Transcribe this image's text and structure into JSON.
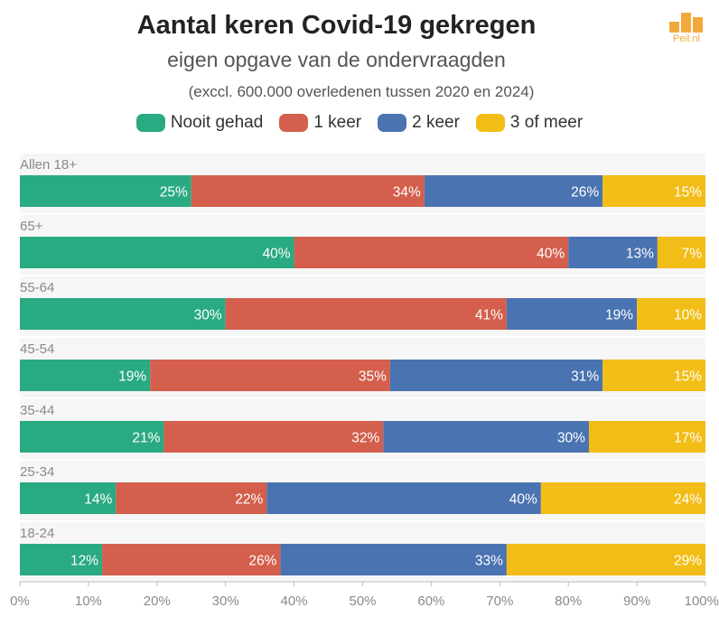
{
  "title": "Aantal keren Covid-19 gekregen",
  "subtitle": "eigen opgave van de ondervraagden",
  "note": "(exccl. 600.000 overledenen tussen 2020 en 2024)",
  "logo": {
    "text": "Peil.nl",
    "color": "#f2a93b"
  },
  "chart_data": {
    "type": "bar",
    "orientation": "horizontal",
    "stacked": true,
    "title": "Aantal keren Covid-19 gekregen",
    "subtitle": "eigen opgave van de ondervraagden",
    "categories": [
      "Allen 18+",
      "65+",
      "55-64",
      "45-54",
      "35-44",
      "25-34",
      "18-24"
    ],
    "series": [
      {
        "name": "Nooit gehad",
        "color": "#2aaa82",
        "values": [
          25,
          40,
          30,
          19,
          21,
          14,
          12
        ]
      },
      {
        "name": "1 keer",
        "color": "#d35f4c",
        "values": [
          34,
          40,
          41,
          35,
          32,
          22,
          26
        ]
      },
      {
        "name": "2 keer",
        "color": "#4a73b1",
        "values": [
          26,
          13,
          19,
          31,
          30,
          40,
          33
        ]
      },
      {
        "name": "3 of meer",
        "color": "#f2bd16",
        "values": [
          15,
          7,
          10,
          15,
          17,
          24,
          29
        ]
      }
    ],
    "xlim": [
      0,
      100
    ],
    "xticks": [
      "0%",
      "10%",
      "20%",
      "30%",
      "40%",
      "50%",
      "60%",
      "70%",
      "80%",
      "90%",
      "100%"
    ],
    "value_suffix": "%",
    "legend": "top-center",
    "grid": false
  }
}
